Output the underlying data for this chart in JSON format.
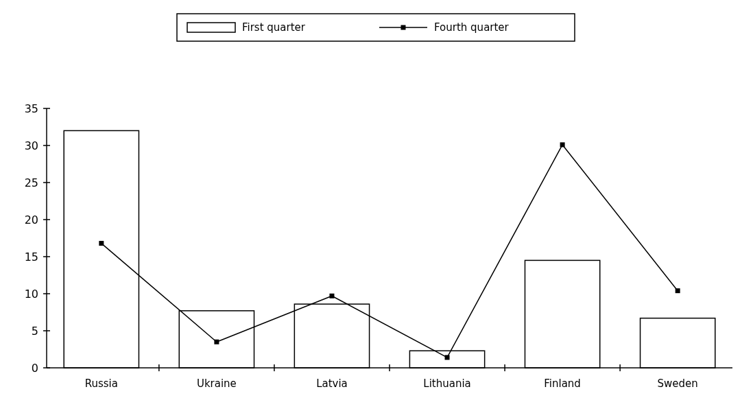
{
  "chart_data": {
    "type": "bar",
    "categories": [
      "Russia",
      "Ukraine",
      "Latvia",
      "Lithuania",
      "Finland",
      "Sweden"
    ],
    "series": [
      {
        "name": "First quarter",
        "color": "#ffffff",
        "values": [
          32,
          7.7,
          8.6,
          2.3,
          14.5,
          6.7
        ]
      },
      {
        "name": "Fourth quarter",
        "type": "line",
        "color": "#000000",
        "values": [
          16.8,
          3.5,
          9.7,
          1.4,
          30.1,
          10.4
        ]
      }
    ],
    "ylim": [
      0,
      35
    ],
    "yticks": [
      0,
      5,
      10,
      15,
      20,
      25,
      30,
      35
    ],
    "legend": "top",
    "marker": "square",
    "line_style": "solid",
    "grid": false
  }
}
